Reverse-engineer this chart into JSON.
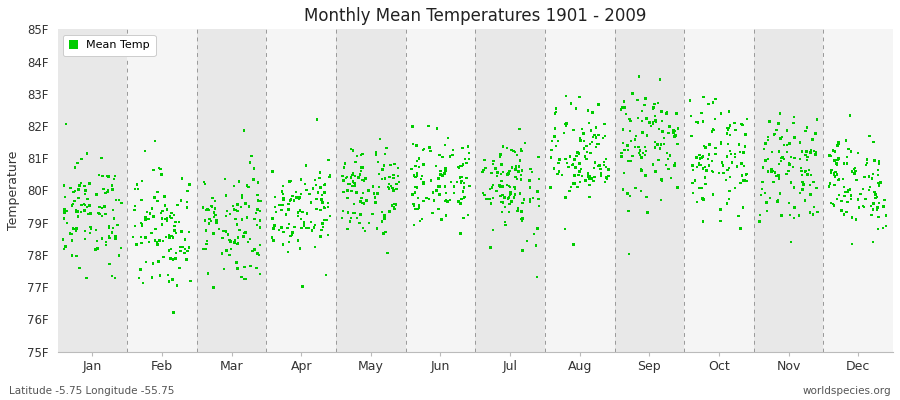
{
  "title": "Monthly Mean Temperatures 1901 - 2009",
  "ylabel": "Temperature",
  "xlabel_labels": [
    "Jan",
    "Feb",
    "Mar",
    "Apr",
    "May",
    "Jun",
    "Jul",
    "Aug",
    "Sep",
    "Oct",
    "Nov",
    "Dec"
  ],
  "legend_label": "Mean Temp",
  "dot_color": "#00cc00",
  "bg_dark": "#e8e8e8",
  "bg_light": "#f5f5f5",
  "ylim_low": 75,
  "ylim_high": 85,
  "yticks": [
    75,
    76,
    77,
    78,
    79,
    80,
    81,
    82,
    83,
    84,
    85
  ],
  "ytick_labels": [
    "75F",
    "76F",
    "77F",
    "78F",
    "79F",
    "80F",
    "81F",
    "82F",
    "83F",
    "84F",
    "85F"
  ],
  "footer_left": "Latitude -5.75 Longitude -55.75",
  "footer_right": "worldspecies.org",
  "num_years": 109,
  "monthly_means_f": [
    79.3,
    78.8,
    79.0,
    79.5,
    80.0,
    80.3,
    80.2,
    81.0,
    81.4,
    81.0,
    80.7,
    80.2
  ],
  "monthly_stds_f": [
    0.85,
    0.95,
    0.9,
    0.7,
    0.75,
    0.7,
    0.85,
    0.85,
    0.9,
    0.85,
    0.75,
    0.75
  ]
}
